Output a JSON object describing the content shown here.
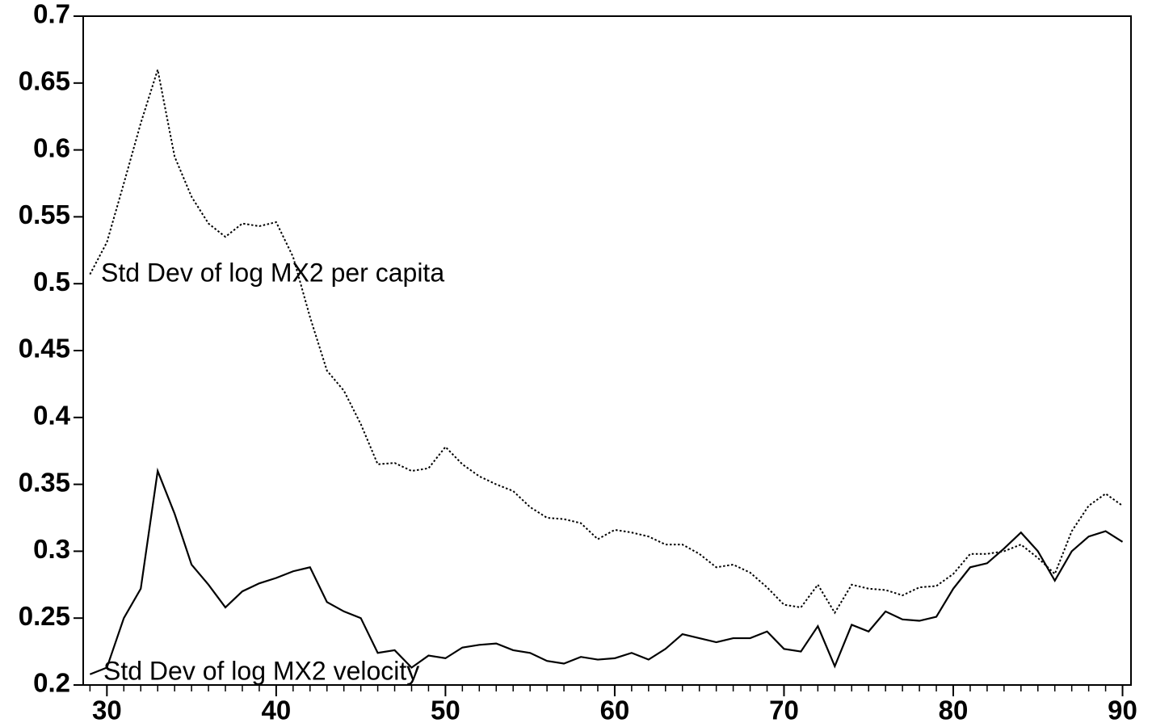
{
  "chart_data": {
    "type": "line",
    "x": [
      29,
      30,
      31,
      32,
      33,
      34,
      35,
      36,
      37,
      38,
      39,
      40,
      41,
      42,
      43,
      44,
      45,
      46,
      47,
      48,
      49,
      50,
      51,
      52,
      53,
      54,
      55,
      56,
      57,
      58,
      59,
      60,
      61,
      62,
      63,
      64,
      65,
      66,
      67,
      68,
      69,
      70,
      71,
      72,
      73,
      74,
      75,
      76,
      77,
      78,
      79,
      80,
      81,
      82,
      83,
      84,
      85,
      86,
      87,
      88,
      89,
      90
    ],
    "series": [
      {
        "name": "Std Dev of log MX2 per capita",
        "color": "#000000",
        "line_style": "dotted",
        "values": [
          0.507,
          0.531,
          0.575,
          0.62,
          0.66,
          0.595,
          0.565,
          0.545,
          0.535,
          0.545,
          0.543,
          0.546,
          0.52,
          0.475,
          0.435,
          0.42,
          0.395,
          0.365,
          0.366,
          0.36,
          0.362,
          0.378,
          0.365,
          0.356,
          0.35,
          0.345,
          0.333,
          0.325,
          0.324,
          0.321,
          0.309,
          0.316,
          0.314,
          0.311,
          0.305,
          0.305,
          0.298,
          0.288,
          0.29,
          0.284,
          0.273,
          0.26,
          0.258,
          0.275,
          0.254,
          0.275,
          0.272,
          0.271,
          0.267,
          0.273,
          0.274,
          0.283,
          0.298,
          0.298,
          0.3,
          0.305,
          0.295,
          0.283,
          0.315,
          0.334,
          0.343,
          0.334
        ]
      },
      {
        "name": "Std Dev of log MX2 velocity",
        "color": "#000000",
        "line_style": "solid",
        "values": [
          0.208,
          0.213,
          0.25,
          0.272,
          0.36,
          0.328,
          0.29,
          0.275,
          0.258,
          0.27,
          0.276,
          0.28,
          0.285,
          0.288,
          0.262,
          0.255,
          0.25,
          0.224,
          0.226,
          0.213,
          0.222,
          0.22,
          0.228,
          0.23,
          0.231,
          0.226,
          0.224,
          0.218,
          0.216,
          0.221,
          0.219,
          0.22,
          0.224,
          0.219,
          0.227,
          0.238,
          0.235,
          0.232,
          0.235,
          0.235,
          0.24,
          0.227,
          0.225,
          0.244,
          0.214,
          0.245,
          0.24,
          0.255,
          0.249,
          0.248,
          0.251,
          0.272,
          0.288,
          0.291,
          0.302,
          0.314,
          0.3,
          0.278,
          0.3,
          0.311,
          0.315,
          0.307
        ]
      }
    ],
    "xlim": [
      28.6,
      90.5
    ],
    "ylim": [
      0.2,
      0.7
    ],
    "xticks": [
      30,
      40,
      50,
      60,
      70,
      80,
      90
    ],
    "xminorticks": [
      29,
      31,
      32,
      33,
      34,
      35,
      36,
      37,
      38,
      39,
      41,
      42,
      43,
      44,
      45,
      46,
      47,
      48,
      49,
      51,
      52,
      53,
      54,
      55,
      56,
      57,
      58,
      59,
      61,
      62,
      63,
      64,
      65,
      66,
      67,
      68,
      69,
      71,
      72,
      73,
      74,
      75,
      76,
      77,
      78,
      79,
      81,
      82,
      83,
      84,
      85,
      86,
      87,
      88,
      89
    ],
    "yticks": [
      0.2,
      0.25,
      0.3,
      0.35,
      0.4,
      0.45,
      0.5,
      0.55,
      0.6,
      0.65,
      0.7
    ],
    "grid": false
  }
}
